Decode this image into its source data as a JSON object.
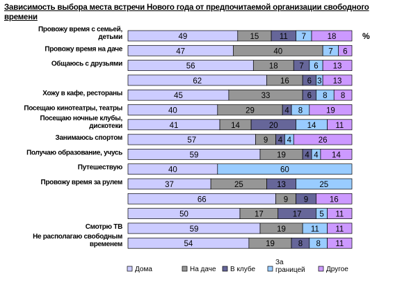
{
  "chart_data": {
    "type": "bar",
    "orientation": "horizontal",
    "stacked": true,
    "title": "Зависимость выбора места встречи Нового года от предпочитаемой организации свободного времени",
    "unit_label": "%",
    "xlim": [
      0,
      100
    ],
    "grid": false,
    "legend_position": "bottom",
    "categories": [
      [
        "Провожу время с семьей,",
        "детьми"
      ],
      [
        "Провожу время на даче"
      ],
      [
        "Общаюсь с друзьями"
      ],
      [],
      [
        "Хожу в кафе, рестораны"
      ],
      [
        "Посещаю кинотеатры, театры"
      ],
      [
        "Посещаю ночные клубы,",
        "дискотеки"
      ],
      [
        "Занимаюсь спортом"
      ],
      [
        "Получаю образование, учусь"
      ],
      [
        "Путешествую"
      ],
      [
        "Провожу время за рулем"
      ],
      [],
      [],
      [
        "Смотрю ТВ"
      ],
      [
        "Не располагаю свободным",
        "временем"
      ]
    ],
    "series": [
      {
        "name": "Дома",
        "color": "#ccccff",
        "values": [
          49,
          47,
          56,
          62,
          45,
          40,
          41,
          57,
          59,
          40,
          37,
          66,
          50,
          59,
          54
        ]
      },
      {
        "name": "На даче",
        "color": "#969696",
        "values": [
          15,
          40,
          18,
          16,
          33,
          29,
          14,
          9,
          19,
          0,
          25,
          9,
          17,
          19,
          19
        ]
      },
      {
        "name": "В клубе",
        "color": "#666699",
        "values": [
          11,
          0,
          7,
          6,
          6,
          4,
          20,
          4,
          4,
          0,
          13,
          9,
          17,
          0,
          8
        ]
      },
      {
        "name": "За\nграницей",
        "color": "#99ccff",
        "values": [
          7,
          7,
          6,
          3,
          8,
          8,
          14,
          4,
          4,
          60,
          25,
          0,
          5,
          11,
          8
        ]
      },
      {
        "name": "Другое",
        "color": "#cc99ff",
        "values": [
          18,
          6,
          13,
          13,
          8,
          19,
          11,
          26,
          14,
          0,
          0,
          16,
          11,
          11,
          11
        ]
      }
    ]
  }
}
